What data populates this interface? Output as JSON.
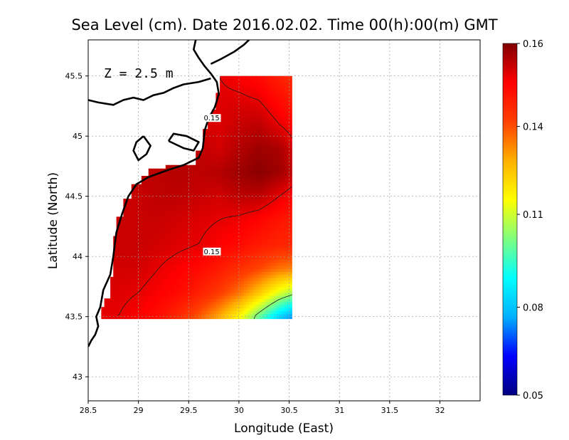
{
  "chart_data": {
    "type": "heatmap",
    "title": "Sea Level (cm). Date 2016.02.02. Time 00(h):00(m) GMT",
    "xlabel": "Longitude (East)",
    "ylabel": "Latitude (North)",
    "annotation": "Z = 2.5 m",
    "xlim": [
      28.5,
      32.4
    ],
    "ylim": [
      42.8,
      45.8
    ],
    "x_ticks": [
      "28.5",
      "29",
      "29.5",
      "30",
      "30.5",
      "31",
      "31.5",
      "32"
    ],
    "y_ticks": [
      "43",
      "43.5",
      "44",
      "44.5",
      "45",
      "45.5"
    ],
    "grid": true,
    "contour_labels": [
      {
        "text": "0.15",
        "lon": 29.65,
        "lat": 45.13
      },
      {
        "text": "0.15",
        "lon": 29.65,
        "lat": 44.02
      }
    ],
    "colorbar": {
      "min": 0.05,
      "max": 0.16,
      "ticks": [
        "0.16",
        "0.14",
        "0.11",
        "0.08",
        "0.05"
      ],
      "colors": [
        "#00007f",
        "#0000ff",
        "#00b0ff",
        "#00ffff",
        "#7fff7f",
        "#ffff00",
        "#ffb000",
        "#ff4000",
        "#ff0000",
        "#7f0000"
      ]
    },
    "data_extent": {
      "lon": [
        28.63,
        30.53
      ],
      "lat": [
        43.48,
        45.5
      ]
    },
    "value_field": {
      "lat": [
        43.5,
        43.7,
        43.9,
        44.1,
        44.3,
        44.5,
        44.7,
        44.9,
        45.1,
        45.3,
        45.5
      ],
      "lon": [
        28.6,
        28.8,
        29.0,
        29.2,
        29.4,
        29.6,
        29.8,
        30.0,
        30.2,
        30.4,
        30.6
      ],
      "values": [
        [
          0.15,
          0.15,
          0.148,
          0.145,
          0.14,
          0.133,
          0.124,
          0.112,
          0.096,
          0.08,
          0.068
        ],
        [
          0.151,
          0.151,
          0.15,
          0.148,
          0.146,
          0.142,
          0.137,
          0.13,
          0.12,
          0.108,
          0.1
        ],
        [
          0.152,
          0.152,
          0.152,
          0.15,
          0.148,
          0.146,
          0.143,
          0.139,
          0.135,
          0.13,
          0.128
        ],
        [
          0.152,
          0.153,
          0.153,
          0.152,
          0.151,
          0.15,
          0.148,
          0.146,
          0.143,
          0.141,
          0.14
        ],
        [
          0.152,
          0.153,
          0.153,
          0.153,
          0.152,
          0.151,
          0.15,
          0.149,
          0.147,
          0.144,
          0.142
        ],
        [
          0.152,
          0.153,
          0.153,
          0.154,
          0.154,
          0.153,
          0.152,
          0.154,
          0.154,
          0.15,
          0.146
        ],
        [
          0.152,
          0.153,
          0.154,
          0.154,
          0.155,
          0.154,
          0.155,
          0.157,
          0.159,
          0.157,
          0.152
        ],
        [
          0.152,
          0.153,
          0.154,
          0.154,
          0.155,
          0.154,
          0.152,
          0.155,
          0.157,
          0.156,
          0.15
        ],
        [
          0.152,
          0.153,
          0.153,
          0.153,
          0.153,
          0.152,
          0.151,
          0.153,
          0.154,
          0.15,
          0.146
        ],
        [
          0.151,
          0.152,
          0.152,
          0.152,
          0.152,
          0.15,
          0.151,
          0.151,
          0.15,
          0.146,
          0.141
        ],
        [
          0.15,
          0.15,
          0.15,
          0.15,
          0.15,
          0.148,
          0.15,
          0.148,
          0.146,
          0.142,
          0.138
        ]
      ]
    }
  }
}
